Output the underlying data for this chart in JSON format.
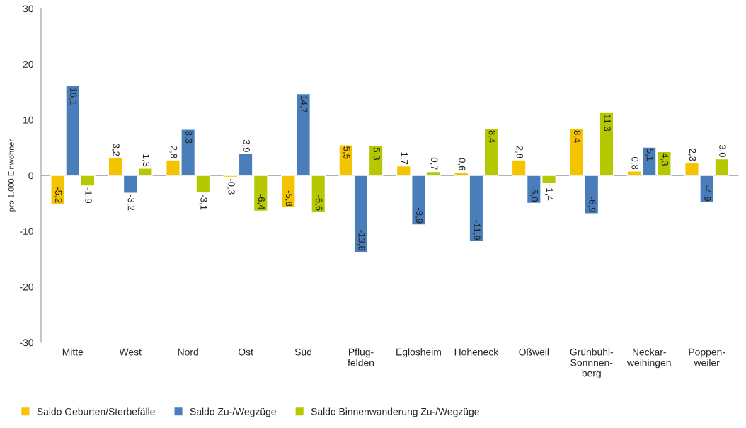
{
  "chart_data": {
    "type": "bar",
    "ylabel": "pro 1.000 Einwohner",
    "categories": [
      "Mitte",
      "West",
      "Nord",
      "Ost",
      "Süd",
      "Pflug-\nfelden",
      "Eglosheim",
      "Hoheneck",
      "Oßweil",
      "Grünbühl-\nSonnnen-\nberg",
      "Neckar-\nweihingen",
      "Poppen-\nweiler"
    ],
    "series": [
      {
        "name": "Saldo Geburten/Sterbefälle",
        "color": "#f5c400",
        "values": [
          -5.2,
          3.2,
          2.8,
          -0.3,
          -5.8,
          5.5,
          1.7,
          0.6,
          2.8,
          8.4,
          0.8,
          2.3
        ],
        "value_labels": [
          "-5,2",
          "3,2",
          "2,8",
          "-0,3",
          "-5,8",
          "5,5",
          "1,7",
          "0,6",
          "2,8",
          "8,4",
          "0,8",
          "2,3"
        ]
      },
      {
        "name": "Saldo Zu-/Wegzüge",
        "color": "#4a7ebb",
        "values": [
          16.1,
          -3.2,
          8.3,
          3.9,
          14.7,
          -13.8,
          -8.9,
          -11.9,
          -5.0,
          -6.9,
          5.1,
          -4.9
        ],
        "value_labels": [
          "16,1",
          "-3,2",
          "8,3",
          "3,9",
          "14,7",
          "-13,8",
          "-8,9",
          "-11,9",
          "-5,0",
          "-6,9",
          "5,1",
          "-4,9"
        ]
      },
      {
        "name": "Saldo Binnenwanderung Zu-/Wegzüge",
        "color": "#b5c800",
        "values": [
          -1.9,
          1.3,
          -3.1,
          -6.4,
          -6.6,
          5.3,
          0.7,
          8.4,
          -1.4,
          11.3,
          4.3,
          3.0
        ],
        "value_labels": [
          "-1,9",
          "1,3",
          "-3,1",
          "-6,4",
          "-6,6",
          "5,3",
          "0,7",
          "8,4",
          "-1,4",
          "11,3",
          "4,3",
          "3,0"
        ]
      }
    ],
    "ylim": [
      -30,
      30
    ],
    "yticks": [
      -30,
      -20,
      -10,
      0,
      10,
      20,
      30
    ],
    "grid": false,
    "ref_lines": [
      {
        "axis": "y",
        "value": 0,
        "color": "#999999"
      }
    ],
    "legend": "bottom left"
  }
}
